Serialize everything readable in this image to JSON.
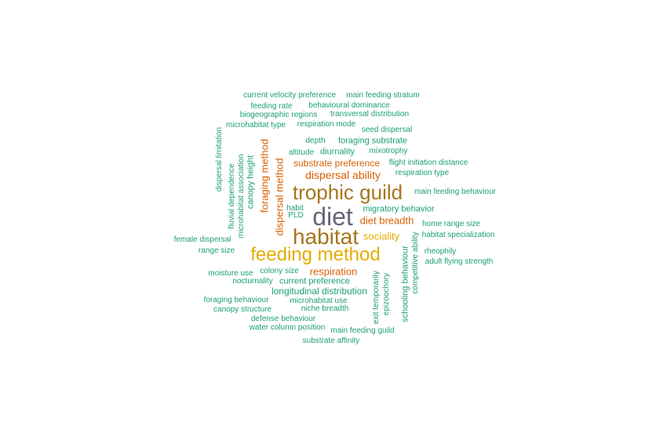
{
  "word_cloud": {
    "colors": {
      "teal": "#1b9e77",
      "orange": "#d95f02",
      "slate": "#66657b",
      "brown": "#a6761d",
      "gold": "#e6ab02"
    },
    "words": [
      "current velocity preference",
      "main feeding stratum",
      "feeding rate",
      "behavioural dominance",
      "biogeographic regions",
      "transversal distribution",
      "microhabitat type",
      "respiration mode",
      "seed dispersal",
      "depth",
      "foraging substrate",
      "altitude",
      "diurnality",
      "mixotrophy",
      "substrate preference",
      "flight initiation distance",
      "dispersal ability",
      "respiration type",
      "trophic guild",
      "main feeding behaviour",
      "habit",
      "PLD",
      "diet",
      "migratory behavior",
      "diet breadth",
      "home range size",
      "habitat",
      "sociality",
      "habitat specialization",
      "female dispersal",
      "range size",
      "rheophily",
      "feeding method",
      "adult flying strength",
      "moisture use",
      "colony size",
      "respiration",
      "nocturnality",
      "current preference",
      "longitudinal distribution",
      "foraging behaviour",
      "microhabitat use",
      "canopy structure",
      "niche breadth",
      "defense behaviour",
      "water column position",
      "main feeding guild",
      "substrate affinity",
      "dispersal limitation",
      "fluvial dependence",
      "microhabitat association",
      "canopy height",
      "foraging method",
      "dispersal method",
      "exit temporarily",
      "epizoochory",
      "schooling behaviour",
      "competitive ability"
    ]
  }
}
